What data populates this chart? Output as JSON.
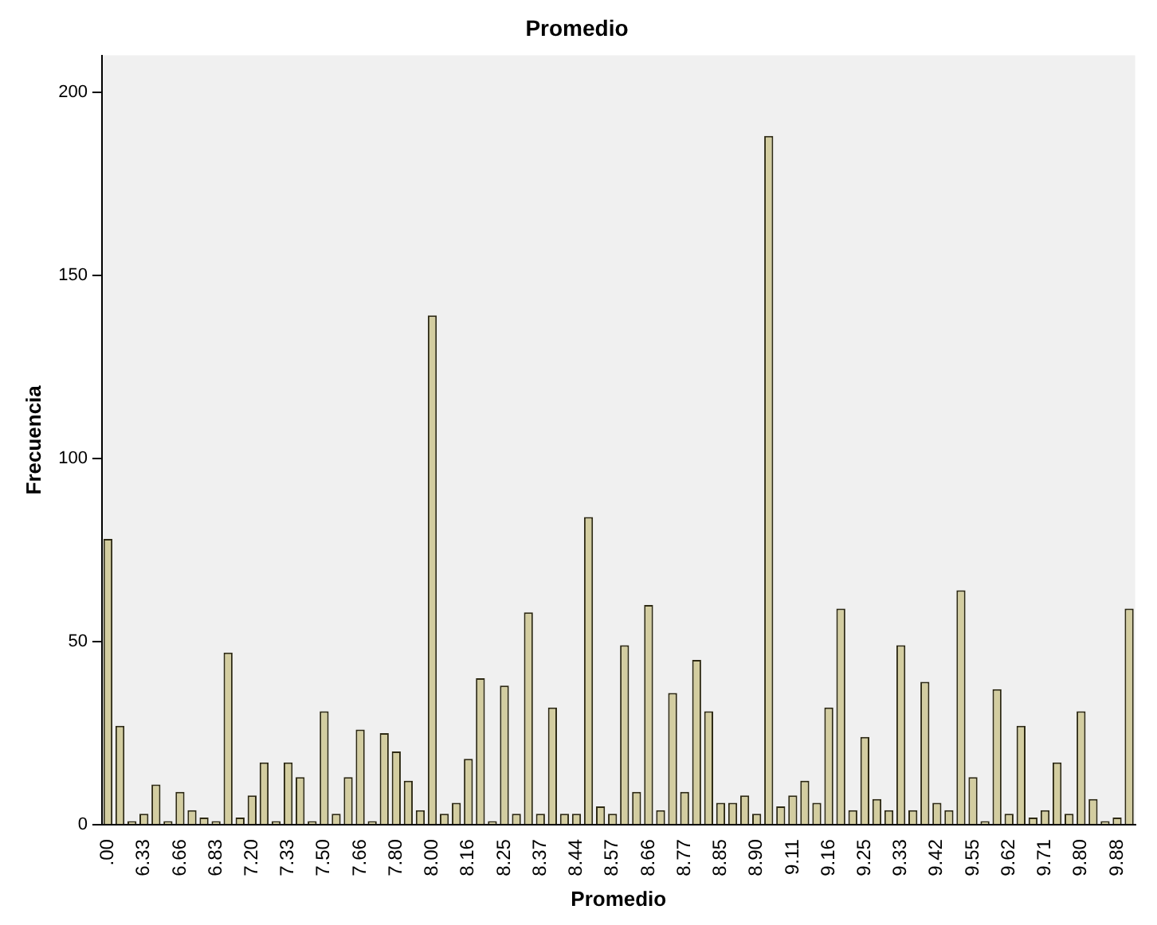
{
  "chart_data": {
    "type": "bar",
    "title": "Promedio",
    "xlabel": "Promedio",
    "ylabel": "Frecuencia",
    "categories": [
      ".00",
      null,
      null,
      "6.33",
      null,
      null,
      "6.66",
      null,
      null,
      "6.83",
      null,
      null,
      "7.20",
      null,
      null,
      "7.33",
      null,
      null,
      "7.50",
      null,
      null,
      "7.66",
      null,
      null,
      "7.80",
      null,
      null,
      "8.00",
      null,
      null,
      "8.16",
      null,
      null,
      "8.25",
      null,
      null,
      "8.37",
      null,
      null,
      "8.44",
      null,
      null,
      "8.57",
      null,
      null,
      "8.66",
      null,
      null,
      "8.77",
      null,
      null,
      "8.85",
      null,
      null,
      "8.90",
      null,
      null,
      "9.11",
      null,
      null,
      "9.16",
      null,
      null,
      "9.25",
      null,
      null,
      "9.33",
      null,
      null,
      "9.42",
      null,
      null,
      "9.55",
      null,
      null,
      "9.62",
      null,
      null,
      "9.71",
      null,
      null,
      "9.80",
      null,
      null,
      "9.88",
      null
    ],
    "values": [
      78,
      27,
      1,
      3,
      11,
      1,
      9,
      4,
      2,
      1,
      47,
      2,
      8,
      17,
      1,
      17,
      13,
      1,
      31,
      3,
      13,
      26,
      1,
      25,
      20,
      12,
      4,
      139,
      3,
      6,
      18,
      40,
      1,
      38,
      3,
      58,
      3,
      32,
      3,
      3,
      84,
      5,
      3,
      49,
      9,
      60,
      4,
      36,
      9,
      45,
      31,
      6,
      6,
      8,
      3,
      188,
      5,
      8,
      12,
      6,
      32,
      59,
      4,
      24,
      7,
      4,
      49,
      4,
      39,
      6,
      4,
      64,
      13,
      1,
      37,
      3,
      27,
      2,
      4,
      17,
      3,
      31,
      7,
      1,
      2,
      59
    ],
    "color": "#d3cda0",
    "ylim": [
      0,
      210
    ],
    "yticks": [
      0,
      50,
      100,
      150,
      200
    ],
    "grid": false,
    "legend": false
  }
}
